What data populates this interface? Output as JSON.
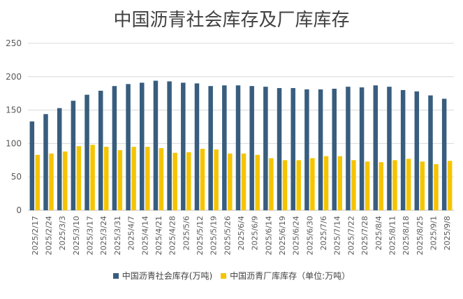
{
  "chart_data": {
    "type": "bar",
    "title": "中国沥青社会库存及厂库库存",
    "categories": [
      "2025/2/17",
      "2025/2/24",
      "2025/3/3",
      "2025/3/10",
      "2025/3/17",
      "2025/3/24",
      "2025/3/31",
      "2025/4/7",
      "2025/4/14",
      "2025/4/21",
      "2025/4/28",
      "2025/5/6",
      "2025/5/12",
      "2025/5/19",
      "2025/5/26",
      "2025/6/4",
      "2025/6/9",
      "2025/6/14",
      "2025/6/19",
      "2025/6/24",
      "2025/6/30",
      "2025/7/6",
      "2025/7/14",
      "2025/7/22",
      "2025/7/28",
      "2025/8/4",
      "2025/8/11",
      "2025/8/18",
      "2025/8/25",
      "2025/9/1",
      "2025/9/8"
    ],
    "series": [
      {
        "name": "中国沥青社会库存(万吨)",
        "color": "#385d7e",
        "values": [
          133,
          144,
          153,
          164,
          173,
          179,
          186,
          189,
          191,
          194,
          193,
          191,
          190,
          186,
          187,
          187,
          186,
          185,
          183,
          183,
          181,
          181,
          182,
          185,
          184,
          187,
          185,
          180,
          178,
          172,
          167
        ]
      },
      {
        "name": "中国沥青厂库库存（单位:万吨）",
        "color": "#f5c400",
        "values": [
          83,
          85,
          88,
          96,
          98,
          95,
          90,
          95,
          95,
          93,
          86,
          87,
          92,
          91,
          85,
          85,
          83,
          78,
          75,
          75,
          78,
          81,
          81,
          75,
          73,
          72,
          75,
          77,
          73,
          69,
          74
        ]
      }
    ],
    "ylim": [
      0,
      250
    ],
    "yticks": [
      0,
      50,
      100,
      150,
      200,
      250
    ],
    "grid": true,
    "legend_position": "bottom"
  }
}
